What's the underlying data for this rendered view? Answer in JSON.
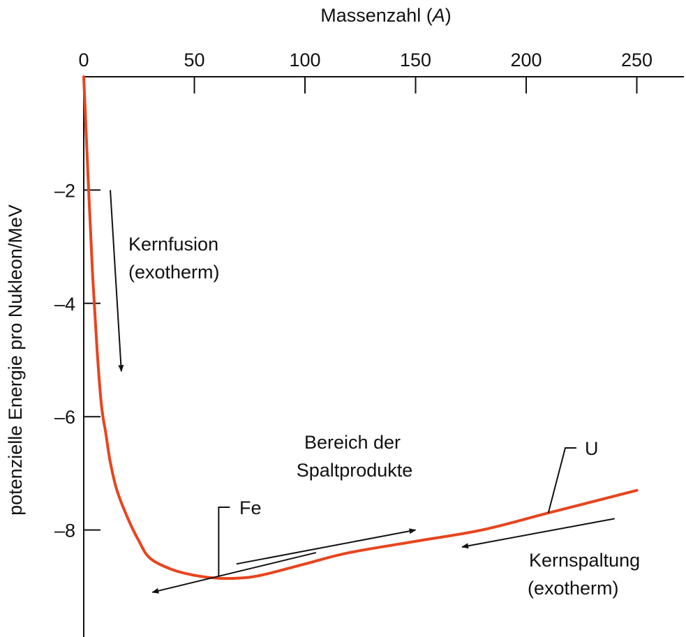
{
  "chart_data": {
    "type": "line",
    "xlabel_prefix": "Massenzahl (",
    "xlabel_var": "A",
    "xlabel_suffix": ")",
    "ylabel": "potenzielle Energie pro Nukleon/MeV",
    "xlim": [
      0,
      270
    ],
    "ylim": [
      -9.6,
      0
    ],
    "x_axis_position": "top",
    "x_ticks": [
      0,
      50,
      100,
      150,
      200,
      250
    ],
    "x_tick_labels": [
      "0",
      "50",
      "100",
      "150",
      "200",
      "250"
    ],
    "y_ticks": [
      -2,
      -4,
      -6,
      -8
    ],
    "y_tick_labels": [
      "–2",
      "–4",
      "–6",
      "–8"
    ],
    "grid": false,
    "legend": "none",
    "series": [
      {
        "color": "#e8441d",
        "x": [
          0,
          2,
          4,
          6,
          8,
          10,
          12,
          15,
          20,
          25,
          30,
          40,
          50,
          60,
          70,
          80,
          100,
          120,
          150,
          180,
          210,
          250
        ],
        "y": [
          0,
          -1.8,
          -3.5,
          -4.8,
          -5.8,
          -6.3,
          -6.8,
          -7.3,
          -7.8,
          -8.2,
          -8.5,
          -8.7,
          -8.8,
          -8.85,
          -8.85,
          -8.8,
          -8.6,
          -8.4,
          -8.2,
          -8.0,
          -7.7,
          -7.3
        ]
      }
    ],
    "annotations": {
      "fusion_line1": "Kernfusion",
      "fusion_line2": "(exotherm)",
      "fission_line1": "Kernspaltung",
      "fission_line2": "(exotherm)",
      "products_line1": "Bereich der",
      "products_line2": "Spaltprodukte",
      "fe_label": "Fe",
      "u_label": "U"
    },
    "markers": {
      "fe_x": 61,
      "u_x": 210
    },
    "arrows": {
      "fusion": {
        "from": [
          12,
          -2
        ],
        "to": [
          17,
          -5.2
        ]
      },
      "products_right": {
        "from": [
          69,
          -8.6
        ],
        "to": [
          150,
          -8.0
        ]
      },
      "products_left": {
        "from": [
          105,
          -8.4
        ],
        "to": [
          31,
          -9.1
        ]
      },
      "fission": {
        "from": [
          240,
          -7.8
        ],
        "to": [
          171,
          -8.3
        ]
      }
    }
  }
}
